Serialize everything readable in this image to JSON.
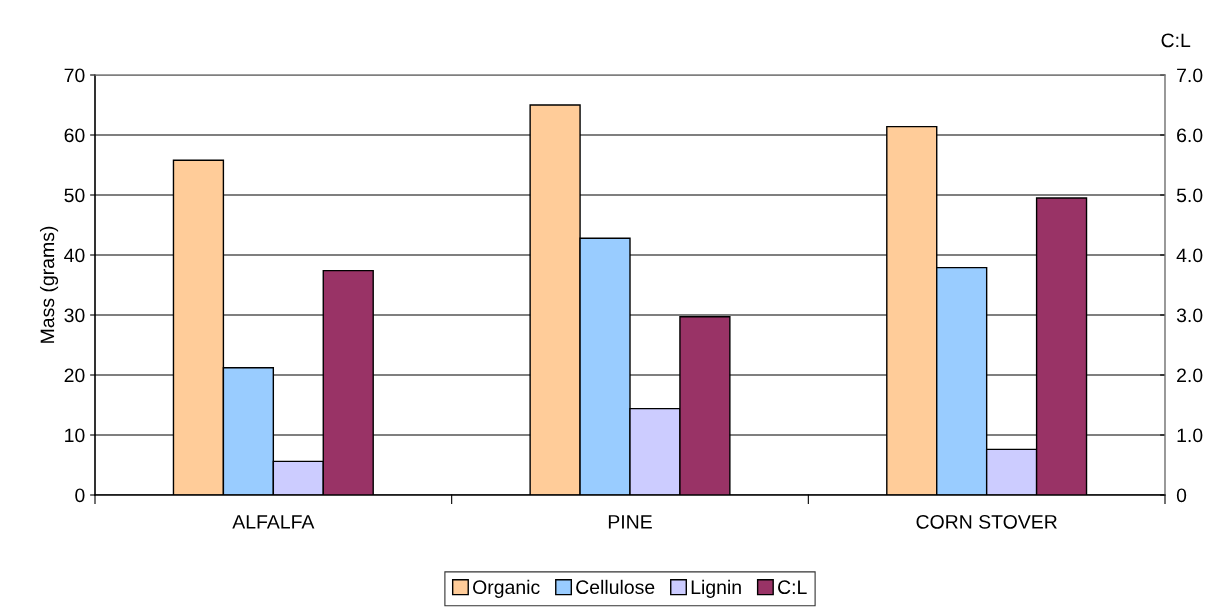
{
  "chart_data": {
    "type": "bar",
    "ylabel": "Mass (grams)",
    "y2label": "C:L",
    "categories": [
      "ALFALFA",
      "PINE",
      "CORN STOVER"
    ],
    "series": [
      {
        "name": "Organic",
        "color": "#ffcc99",
        "values": [
          55.8,
          65.0,
          61.4
        ]
      },
      {
        "name": "Cellulose",
        "color": "#99ccff",
        "values": [
          21.2,
          42.8,
          37.9
        ]
      },
      {
        "name": "Lignin",
        "color": "#ccccff",
        "values": [
          5.6,
          14.4,
          7.6
        ]
      },
      {
        "name": "C:L",
        "color": "#993366",
        "values": [
          3.74,
          2.97,
          4.95
        ],
        "axis": "y2"
      }
    ],
    "ylim": [
      0,
      70
    ],
    "yticks": [
      0,
      10,
      20,
      30,
      40,
      50,
      60,
      70
    ],
    "y2lim": [
      0,
      7
    ],
    "y2ticks": [
      0,
      {
        "value": 1,
        "label": "1.0"
      },
      {
        "value": 2,
        "label": "2.0"
      },
      {
        "value": 3,
        "label": "3.0"
      },
      {
        "value": 4,
        "label": "4.0"
      },
      {
        "value": 5,
        "label": "5.0"
      },
      {
        "value": 6,
        "label": "6.0"
      },
      {
        "value": 7,
        "label": "7.0"
      }
    ],
    "grid": "y",
    "legend": "bottom"
  }
}
